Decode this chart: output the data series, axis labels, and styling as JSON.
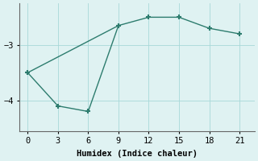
{
  "line1_x": [
    0,
    9,
    12,
    15,
    18,
    21
  ],
  "line1_y": [
    -3.5,
    -2.65,
    -2.5,
    -2.5,
    -2.7,
    -2.8
  ],
  "line2_x": [
    0,
    3,
    6,
    9
  ],
  "line2_y": [
    -3.5,
    -4.1,
    -4.2,
    -2.65
  ],
  "color": "#2d7c6e",
  "bg_color": "#dff2f2",
  "xlabel": "Humidex (Indice chaleur)",
  "yticks": [
    -4,
    -3
  ],
  "xticks": [
    0,
    3,
    6,
    9,
    12,
    15,
    18,
    21
  ],
  "xlim": [
    -0.8,
    22.5
  ],
  "ylim": [
    -4.55,
    -2.25
  ],
  "marker": "+"
}
